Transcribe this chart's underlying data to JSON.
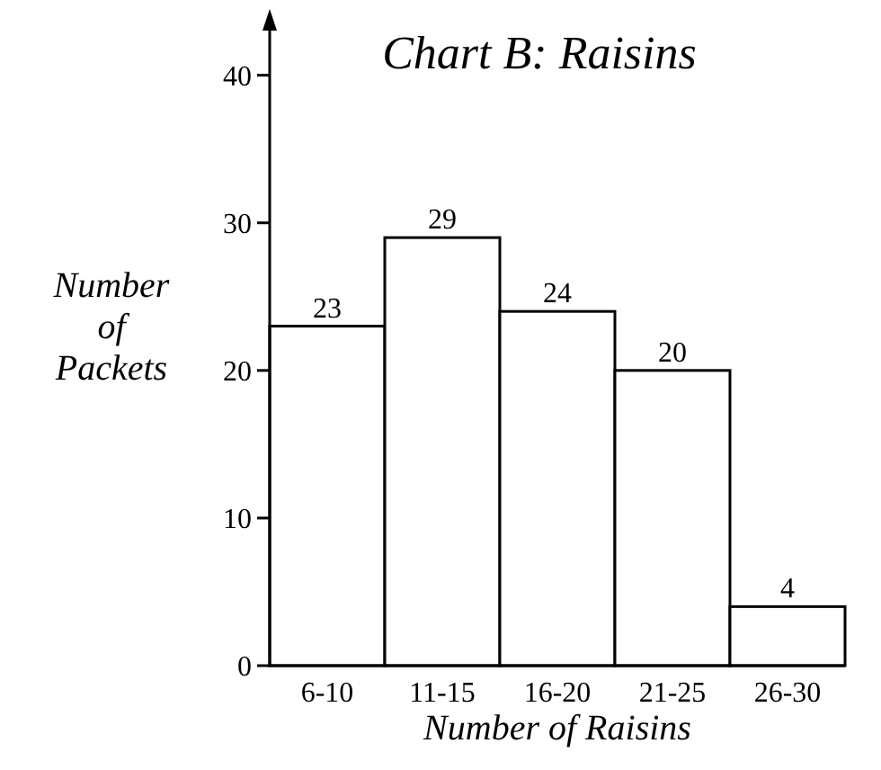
{
  "chart_data": {
    "type": "bar",
    "title": "Chart B: Raisins",
    "xlabel": "Number of Raisins",
    "ylabel": "Number of Packets",
    "categories": [
      "6-10",
      "11-15",
      "16-20",
      "21-25",
      "26-30"
    ],
    "values": [
      23,
      29,
      24,
      20,
      4
    ],
    "color": "#ffffff",
    "data_labels": true,
    "ylim": [
      0,
      44
    ],
    "yticks": [
      0,
      10,
      20,
      30,
      40
    ],
    "grid": false
  }
}
